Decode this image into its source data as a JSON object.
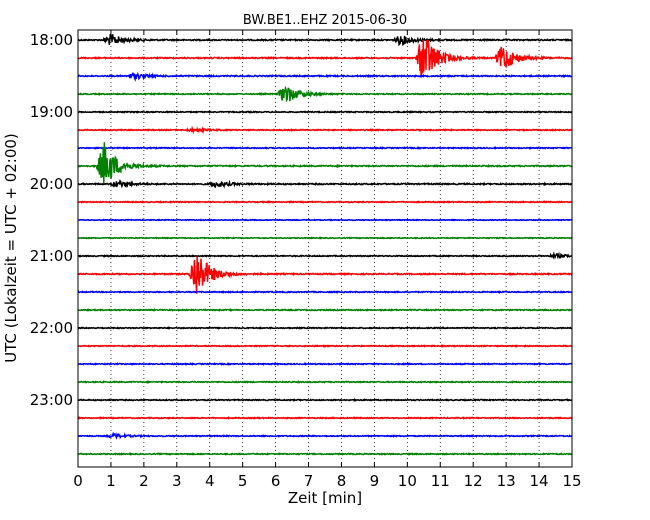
{
  "chart_data": {
    "type": "line",
    "title": "BW.BE1..EHZ 2015-06-30",
    "xlabel": "Zeit  [min]",
    "ylabel": "UTC (Lokalzeit = UTC + 02:00)",
    "xlim": [
      0,
      15
    ],
    "x_ticks": [
      "0",
      "1",
      "2",
      "3",
      "4",
      "5",
      "6",
      "7",
      "8",
      "9",
      "10",
      "11",
      "12",
      "13",
      "14",
      "15"
    ],
    "y_ticks": [
      "18:00",
      "19:00",
      "20:00",
      "21:00",
      "22:00",
      "23:00"
    ],
    "grid": "vertical dotted",
    "trace_minutes": 15,
    "trace_colors": [
      "#000000",
      "#ff0000",
      "#0000ff",
      "#008000"
    ],
    "traces": [
      {
        "start": "18:00",
        "noise": 0.6,
        "events": [
          {
            "t": 1.0,
            "amp": 6
          },
          {
            "t": 9.8,
            "amp": 5
          }
        ]
      },
      {
        "start": "18:15",
        "noise": 0.6,
        "events": [
          {
            "t": 10.5,
            "amp": 28
          },
          {
            "t": 12.9,
            "amp": 14
          }
        ]
      },
      {
        "start": "18:30",
        "noise": 0.6,
        "events": [
          {
            "t": 1.7,
            "amp": 3
          }
        ]
      },
      {
        "start": "18:45",
        "noise": 0.5,
        "events": [
          {
            "t": 6.3,
            "amp": 10
          }
        ]
      },
      {
        "start": "19:00",
        "noise": 0.5,
        "events": []
      },
      {
        "start": "19:15",
        "noise": 0.5,
        "events": [
          {
            "t": 3.5,
            "amp": 1.5
          }
        ]
      },
      {
        "start": "19:30",
        "noise": 0.5,
        "events": []
      },
      {
        "start": "19:45",
        "noise": 0.6,
        "events": [
          {
            "t": 0.8,
            "amp": 24
          }
        ]
      },
      {
        "start": "20:00",
        "noise": 0.6,
        "events": [
          {
            "t": 1.2,
            "amp": 3
          },
          {
            "t": 4.2,
            "amp": 3
          }
        ]
      },
      {
        "start": "20:15",
        "noise": 0.5,
        "events": []
      },
      {
        "start": "20:30",
        "noise": 0.4,
        "events": []
      },
      {
        "start": "20:45",
        "noise": 0.4,
        "events": []
      },
      {
        "start": "21:00",
        "noise": 0.5,
        "events": [
          {
            "t": 14.5,
            "amp": 2
          }
        ]
      },
      {
        "start": "21:15",
        "noise": 0.6,
        "events": [
          {
            "t": 3.6,
            "amp": 26
          }
        ]
      },
      {
        "start": "21:30",
        "noise": 0.5,
        "events": []
      },
      {
        "start": "21:45",
        "noise": 0.5,
        "events": []
      },
      {
        "start": "22:00",
        "noise": 0.5,
        "events": []
      },
      {
        "start": "22:15",
        "noise": 0.5,
        "events": []
      },
      {
        "start": "22:30",
        "noise": 0.5,
        "events": []
      },
      {
        "start": "22:45",
        "noise": 0.5,
        "events": []
      },
      {
        "start": "23:00",
        "noise": 0.5,
        "events": []
      },
      {
        "start": "23:15",
        "noise": 0.5,
        "events": []
      },
      {
        "start": "23:30",
        "noise": 0.5,
        "events": [
          {
            "t": 1.1,
            "amp": 2
          }
        ]
      },
      {
        "start": "23:45",
        "noise": 0.5,
        "events": []
      }
    ]
  }
}
